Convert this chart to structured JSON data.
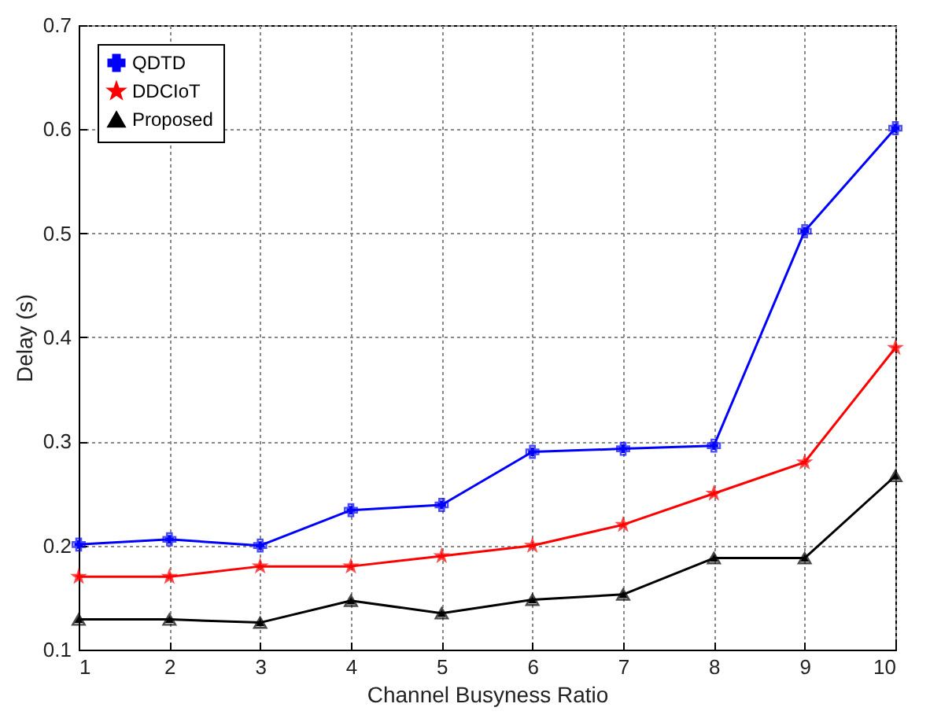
{
  "chart_data": {
    "type": "line",
    "xlabel": "Channel Busyness Ratio",
    "ylabel": "Delay (s)",
    "x": [
      1,
      2,
      3,
      4,
      5,
      6,
      7,
      8,
      9,
      10
    ],
    "series": [
      {
        "name": "QDTD",
        "color": "#0000ff",
        "marker": "cross",
        "values": [
          0.201,
          0.206,
          0.2,
          0.234,
          0.239,
          0.29,
          0.293,
          0.296,
          0.502,
          0.601
        ]
      },
      {
        "name": "DDCIoT",
        "color": "#ff0000",
        "marker": "star",
        "values": [
          0.17,
          0.17,
          0.18,
          0.18,
          0.19,
          0.2,
          0.22,
          0.25,
          0.28,
          0.39
        ]
      },
      {
        "name": "Proposed",
        "color": "#000000",
        "marker": "triangle",
        "values": [
          0.129,
          0.129,
          0.126,
          0.147,
          0.135,
          0.148,
          0.153,
          0.188,
          0.188,
          0.267
        ]
      }
    ],
    "xlim": [
      1,
      10
    ],
    "xticks": [
      1,
      2,
      3,
      4,
      5,
      6,
      7,
      8,
      9,
      10
    ],
    "ylim": [
      0.1,
      0.7
    ],
    "yticks": [
      0.1,
      0.2,
      0.3,
      0.4,
      0.5,
      0.6,
      0.7
    ],
    "grid": true,
    "legend": "top left",
    "line_style": "solid"
  }
}
